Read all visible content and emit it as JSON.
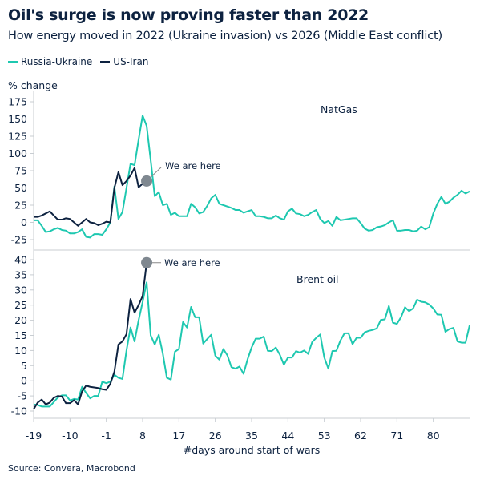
{
  "title": "Oil's surge is now proving faster than 2022",
  "subtitle": "How energy moved in 2022 (Ukraine invasion) vs 2026 (Middle East conflict)",
  "source": "Source: Convera, Macrobond",
  "colors": {
    "russia_ukraine": "#1ec8b0",
    "us_iran": "#0d2240",
    "marker": "#7f8890"
  },
  "chart_data": [
    {
      "type": "line",
      "title": "NatGas",
      "ylabel": "% change",
      "xlabel": "#days around start of wars",
      "ylim": [
        -25,
        175
      ],
      "yticks": [
        175,
        150,
        125,
        100,
        75,
        50,
        25,
        0,
        -25
      ],
      "xlim": [
        -19,
        89
      ],
      "x_start": -19,
      "grid": false,
      "legend": "top-left",
      "annotation": "We are here",
      "series": [
        {
          "name": "Russia-Ukraine",
          "values": [
            3,
            3,
            -5,
            -14,
            -13,
            -10,
            -8,
            -11,
            -12,
            -16,
            -16,
            -14,
            -10,
            -21,
            -22,
            -17,
            -17,
            -18,
            -10,
            0,
            52,
            5,
            15,
            50,
            85,
            83,
            120,
            155,
            140,
            90,
            38,
            44,
            25,
            27,
            11,
            14,
            9,
            9,
            9,
            27,
            22,
            13,
            15,
            24,
            35,
            40,
            27,
            25,
            23,
            21,
            18,
            18,
            14,
            16,
            18,
            9,
            9,
            8,
            6,
            6,
            10,
            6,
            4,
            16,
            20,
            13,
            12,
            9,
            11,
            15,
            18,
            5,
            -1,
            2,
            -5,
            8,
            3,
            4,
            5,
            6,
            6,
            -1,
            -9,
            -12,
            -11,
            -7,
            -6,
            -4,
            0,
            3,
            -12,
            -12,
            -11,
            -11,
            -13,
            -12,
            -6,
            -10,
            -7,
            13,
            27,
            37,
            27,
            30,
            36,
            40,
            46,
            42,
            45
          ]
        },
        {
          "name": "US-Iran",
          "values": [
            8,
            8,
            10,
            13,
            16,
            10,
            4,
            4,
            6,
            5,
            0,
            -5,
            0,
            5,
            0,
            -1,
            -4,
            -2,
            1,
            0,
            50,
            73,
            54,
            60,
            68,
            79,
            51,
            56,
            60
          ]
        }
      ]
    },
    {
      "type": "line",
      "title": "Brent oil",
      "xlabel": "#days around start of wars",
      "ylim": [
        -10,
        40
      ],
      "yticks": [
        40,
        35,
        30,
        25,
        20,
        15,
        10,
        5,
        0,
        -5,
        -10
      ],
      "xlim": [
        -19,
        89
      ],
      "xticks": [
        -19,
        -10,
        -1,
        8,
        17,
        26,
        35,
        44,
        53,
        62,
        71,
        80
      ],
      "x_start": -19,
      "grid": false,
      "annotation": "We are here",
      "series": [
        {
          "name": "Russia-Ukraine",
          "values": [
            -7.8,
            -8,
            -8.5,
            -8.5,
            -8.5,
            -7,
            -5.5,
            -4.8,
            -4.8,
            -6.5,
            -6,
            -6.2,
            -2,
            -4,
            -5.8,
            -5,
            -5,
            -0.3,
            -0.8,
            -0.3,
            2,
            1,
            0.6,
            10,
            17.6,
            13,
            20,
            26,
            32.5,
            15,
            12,
            15.2,
            9,
            1,
            0.4,
            9.6,
            10.5,
            19.4,
            17.6,
            24.4,
            21,
            21,
            12.3,
            13.8,
            15.2,
            8.3,
            7,
            10.5,
            8.4,
            4.5,
            4,
            4.7,
            2.3,
            7.1,
            11,
            13.9,
            13.9,
            14.6,
            9.9,
            9.8,
            11,
            8.6,
            5.3,
            7.7,
            7.7,
            9.8,
            9.3,
            10,
            8.9,
            12.8,
            14.2,
            15.3,
            7.7,
            4,
            9.8,
            9.9,
            13.3,
            15.7,
            15.7,
            12.1,
            14.2,
            14.2,
            16,
            16.5,
            16.8,
            17.3,
            20.1,
            20.3,
            24.7,
            19.2,
            18.8,
            21,
            24.3,
            23,
            23.9,
            26.8,
            26.1,
            25.9,
            25.2,
            23.9,
            21.9,
            21.8,
            16.2,
            17.1,
            17.5,
            13,
            12.6,
            12.6,
            18.3
          ]
        },
        {
          "name": "US-Iran",
          "values": [
            -9.4,
            -7.2,
            -6.2,
            -7.8,
            -7.2,
            -5.6,
            -5,
            -5.2,
            -7.4,
            -7.4,
            -6.4,
            -7.8,
            -3.5,
            -1.6,
            -2,
            -2.2,
            -2.4,
            -2.8,
            -3,
            -1,
            3,
            12,
            13,
            15.4,
            27,
            22.5,
            25,
            28,
            39
          ]
        }
      ]
    }
  ]
}
